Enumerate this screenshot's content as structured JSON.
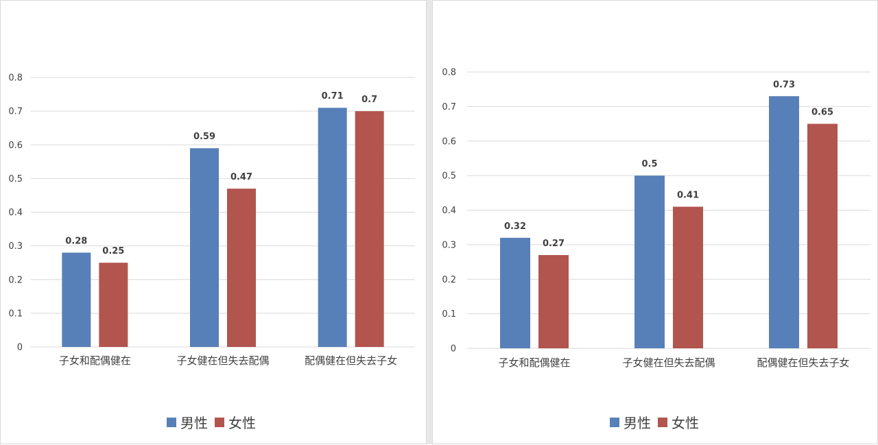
{
  "legend": {
    "male": "男性",
    "female": "女性"
  },
  "colors": {
    "male": "#5880b8",
    "female": "#b2554e",
    "grid": "#d9d9d9",
    "text": "#404040"
  },
  "chart_data": [
    {
      "type": "bar",
      "categories": [
        "子女和配偶健在",
        "子女健在但失去配偶",
        "配偶健在但失去子女"
      ],
      "series": [
        {
          "name": "男性",
          "values": [
            0.28,
            0.59,
            0.71
          ]
        },
        {
          "name": "女性",
          "values": [
            0.25,
            0.47,
            0.7
          ]
        }
      ],
      "value_labels": [
        [
          "0.28",
          "0.59",
          "0.71"
        ],
        [
          "0.25",
          "0.47",
          "0.7"
        ]
      ],
      "ylim": [
        0,
        0.8
      ],
      "yticks": [
        "0",
        "0.1",
        "0.2",
        "0.3",
        "0.4",
        "0.5",
        "0.6",
        "0.7",
        "0.8"
      ],
      "grid": true,
      "legend_position": "bottom"
    },
    {
      "type": "bar",
      "categories": [
        "子女和配偶健在",
        "子女健在但失去配偶",
        "配偶健在但失去子女"
      ],
      "series": [
        {
          "name": "男性",
          "values": [
            0.32,
            0.5,
            0.73
          ]
        },
        {
          "name": "女性",
          "values": [
            0.27,
            0.41,
            0.65
          ]
        }
      ],
      "value_labels": [
        [
          "0.32",
          "0.5",
          "0.73"
        ],
        [
          "0.27",
          "0.41",
          "0.65"
        ]
      ],
      "ylim": [
        0,
        0.8
      ],
      "yticks": [
        "0",
        "0.1",
        "0.2",
        "0.3",
        "0.4",
        "0.5",
        "0.6",
        "0.7",
        "0.8"
      ],
      "grid": true,
      "legend_position": "bottom"
    }
  ]
}
